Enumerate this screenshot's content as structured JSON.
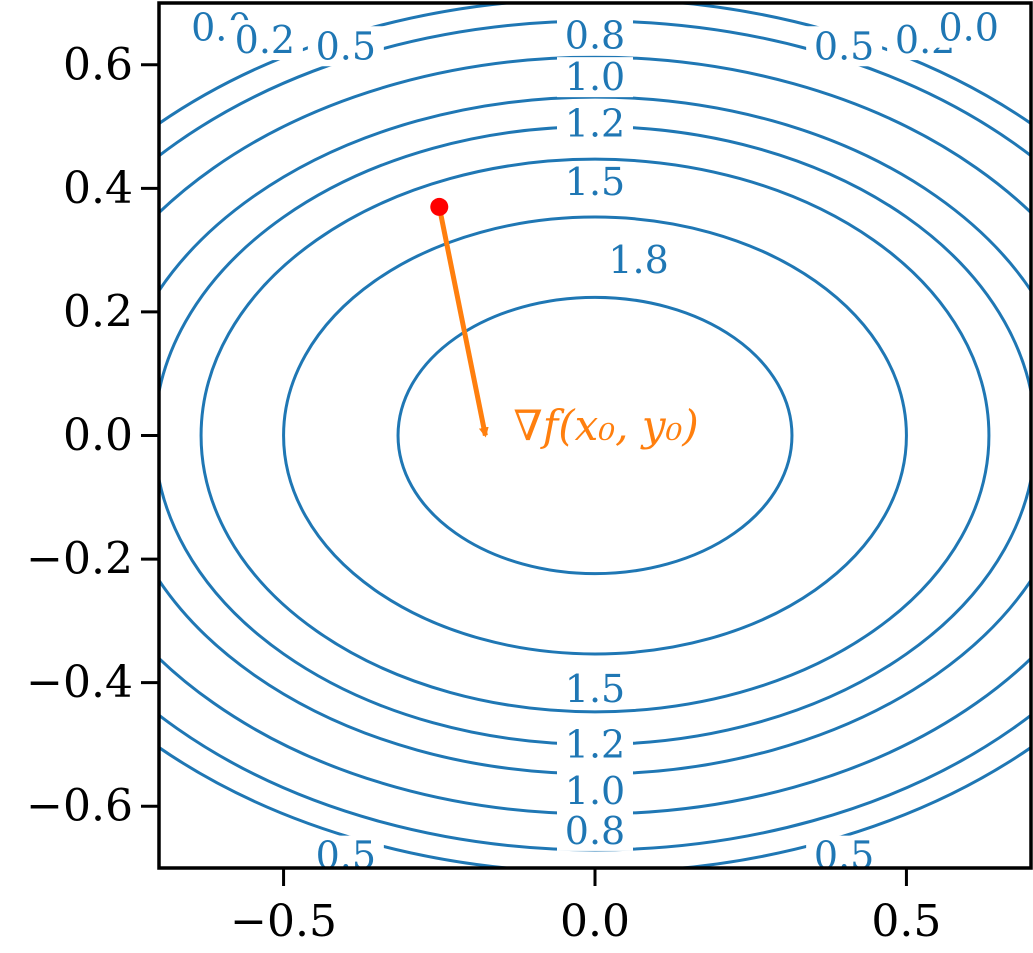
{
  "chart_data": {
    "type": "contour",
    "title": "",
    "xlabel": "",
    "ylabel": "",
    "xlim": [
      -0.7,
      0.7
    ],
    "ylim": [
      -0.7,
      0.7
    ],
    "xticks": [
      -0.5,
      0.0,
      0.5
    ],
    "xtick_labels": [
      "−0.5",
      "0.0",
      "0.5"
    ],
    "yticks": [
      0.6,
      0.4,
      0.2,
      0.0,
      -0.2,
      -0.4,
      -0.6
    ],
    "ytick_labels": [
      "0.6",
      "0.4",
      "0.2",
      "0.0",
      "−0.2",
      "−0.4",
      "−0.6"
    ],
    "grid": false,
    "function": "f(x, y) = 2 - 2x^2 - 4y^2",
    "contour_levels": [
      0.0,
      0.2,
      0.5,
      0.8,
      1.0,
      1.2,
      1.5,
      1.8
    ],
    "contour_labels": [
      {
        "text": "0.0",
        "x": -0.6,
        "y": 0.66
      },
      {
        "text": "0.2",
        "x": -0.53,
        "y": 0.64
      },
      {
        "text": "0.5",
        "x": -0.4,
        "y": 0.63
      },
      {
        "text": "0.8",
        "x": 0.0,
        "y": 0.647
      },
      {
        "text": "1.0",
        "x": 0.0,
        "y": 0.58
      },
      {
        "text": "1.2",
        "x": 0.0,
        "y": 0.505
      },
      {
        "text": "1.5",
        "x": 0.0,
        "y": 0.41
      },
      {
        "text": "1.8",
        "x": 0.07,
        "y": 0.284
      },
      {
        "text": "0.5",
        "x": 0.4,
        "y": 0.63
      },
      {
        "text": "0.2",
        "x": 0.53,
        "y": 0.64
      },
      {
        "text": "0.0",
        "x": 0.6,
        "y": 0.66
      },
      {
        "text": "1.5",
        "x": 0.0,
        "y": -0.41
      },
      {
        "text": "1.2",
        "x": 0.0,
        "y": -0.5
      },
      {
        "text": "1.0",
        "x": 0.0,
        "y": -0.575
      },
      {
        "text": "0.8",
        "x": 0.0,
        "y": -0.64
      },
      {
        "text": "0.5",
        "x": -0.4,
        "y": -0.68
      },
      {
        "text": "0.5",
        "x": 0.4,
        "y": -0.68
      }
    ],
    "point": {
      "x": -0.25,
      "y": 0.37,
      "color": "#ff0000"
    },
    "gradient_arrow": {
      "dx": 0.074,
      "dy": -0.37,
      "color": "#ff7f0e",
      "label": "∇f(x₀, y₀)"
    },
    "colors": {
      "contour": "#1f77b4",
      "arrow": "#ff7f0e",
      "point": "#ff0000"
    }
  }
}
